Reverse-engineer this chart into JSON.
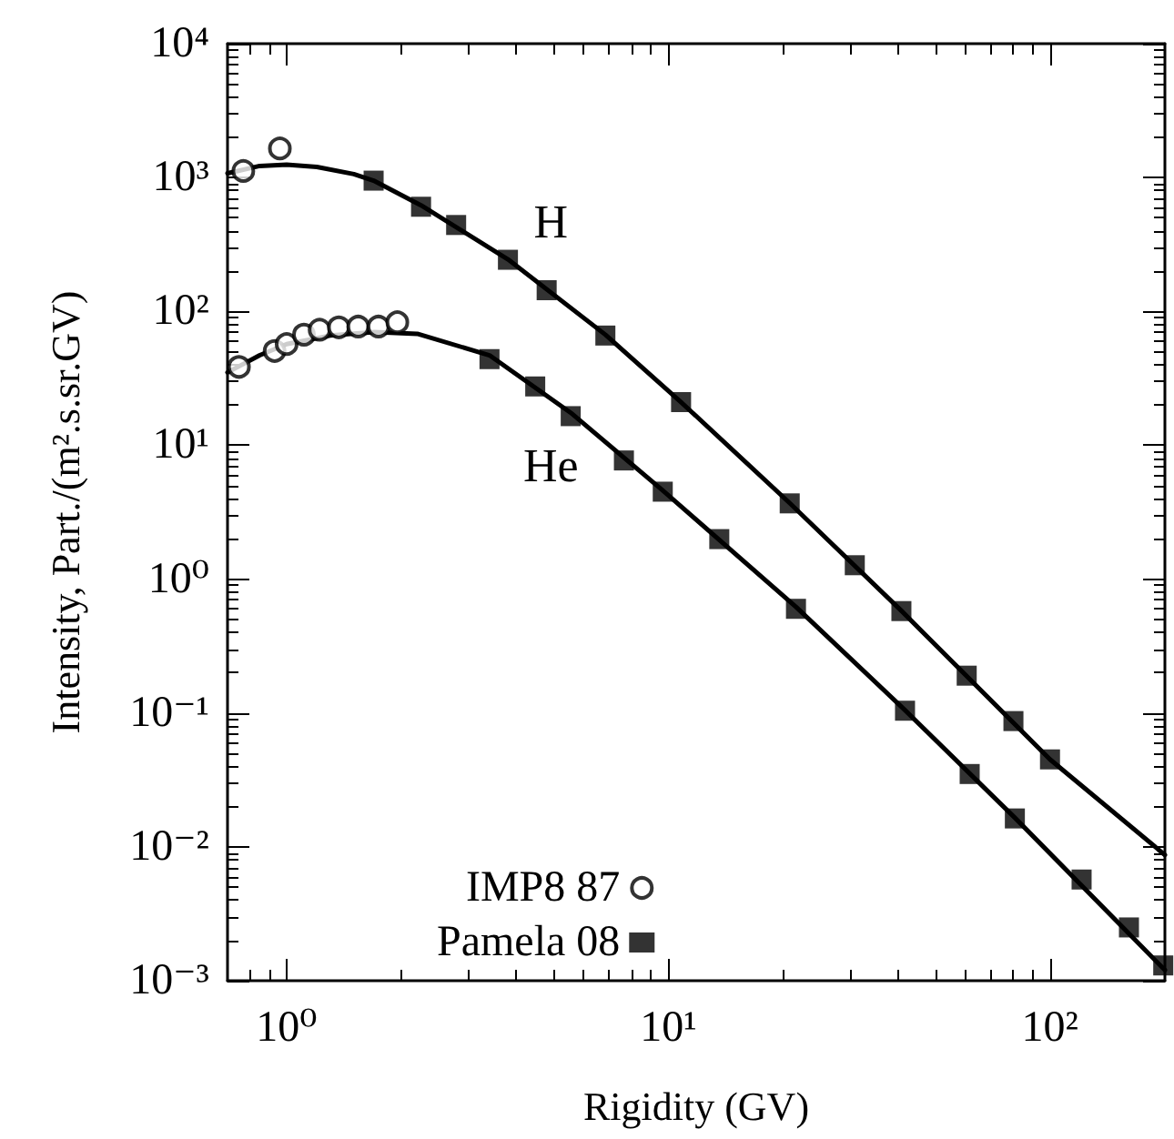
{
  "chart_data": {
    "type": "scatter",
    "xlabel": "Rigidity (GV)",
    "ylabel": "Intensity, Part./(m².s.sr.GV)",
    "log": "xy",
    "grid": false,
    "legend": "bottom left",
    "xlim": [
      0.7,
      200
    ],
    "xticks": [
      {
        "value": 1,
        "label": "10⁰"
      },
      {
        "value": 10,
        "label": "10¹"
      },
      {
        "value": 100,
        "label": "10²"
      }
    ],
    "ylim": [
      0.001,
      10000
    ],
    "yticks": [
      {
        "value": 0.001,
        "label": "10⁻³"
      },
      {
        "value": 0.01,
        "label": "10⁻²"
      },
      {
        "value": 0.1,
        "label": "10⁻¹"
      },
      {
        "value": 1,
        "label": "10⁰"
      },
      {
        "value": 10,
        "label": "10¹"
      },
      {
        "value": 100,
        "label": "10²"
      },
      {
        "value": 1000,
        "label": "10³"
      },
      {
        "value": 10000,
        "label": "10⁴"
      }
    ],
    "annotations": [
      "H",
      "He"
    ],
    "series": [
      {
        "type": "line",
        "color": "#000000",
        "marker": "none",
        "x": [
          0.7,
          0.85,
          1.0,
          1.2,
          1.5,
          1.69,
          2.25,
          3.8,
          6.84,
          10.8,
          20.8,
          40.8,
          100,
          200
        ],
        "values": [
          1075,
          1220,
          1250,
          1200,
          1060,
          948,
          620,
          245,
          67,
          21,
          3.7,
          0.58,
          0.045,
          0.0087
        ]
      },
      {
        "type": "line",
        "color": "#000000",
        "marker": "none",
        "x": [
          0.7,
          0.85,
          1.0,
          1.3,
          1.7,
          2.2,
          3.4,
          5.55,
          9.67,
          21.6,
          41.7,
          80.9,
          200
        ],
        "values": [
          35,
          47,
          57,
          66,
          70,
          68,
          47,
          17.5,
          4.6,
          0.62,
          0.105,
          0.0165,
          0.0012
        ]
      },
      {
        "name": "IMP8 87",
        "color": "#000000",
        "marker": "circle",
        "x": [
          0.77,
          0.96,
          0.75,
          0.93,
          1.0,
          1.11,
          1.22,
          1.37,
          1.54,
          1.74,
          1.95
        ],
        "values": [
          1120,
          1650,
          38.5,
          50.6,
          57,
          67,
          73,
          76,
          77,
          77,
          83
        ]
      },
      {
        "name": "Pamela 08",
        "color": "#000000",
        "marker": "square",
        "x": [
          1.69,
          2.25,
          2.78,
          3.8,
          4.8,
          6.84,
          10.8,
          20.8,
          30.8,
          40.8,
          60.5,
          80.2,
          100,
          3.4,
          4.48,
          5.55,
          7.65,
          9.67,
          13.6,
          21.6,
          41.7,
          61.6,
          80.9,
          121,
          161,
          198
        ],
        "values": [
          948,
          605,
          442,
          243,
          144,
          66,
          21,
          3.68,
          1.27,
          0.577,
          0.19,
          0.087,
          0.045,
          44,
          27.5,
          16.5,
          7.7,
          4.5,
          1.99,
          0.6,
          0.104,
          0.035,
          0.0163,
          0.0057,
          0.0025,
          0.0013
        ]
      }
    ]
  }
}
